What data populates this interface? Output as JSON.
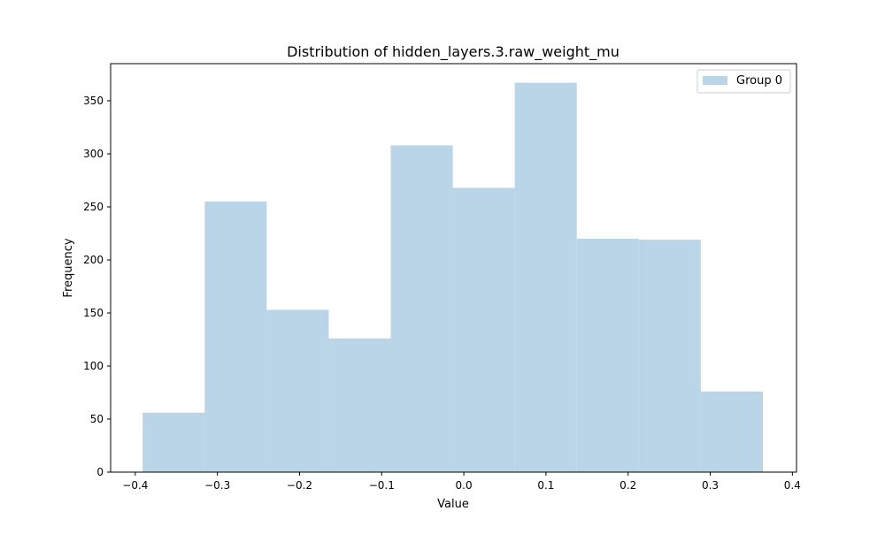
{
  "chart_data": {
    "type": "bar",
    "title": "Distribution of hidden_layers.3.raw_weight_mu",
    "xlabel": "Value",
    "ylabel": "Frequency",
    "xlim": [
      -0.43,
      0.405
    ],
    "ylim": [
      0,
      385
    ],
    "xticks": [
      -0.4,
      -0.3,
      -0.2,
      -0.1,
      0.0,
      0.1,
      0.2,
      0.3,
      0.4
    ],
    "xtick_labels": [
      "−0.4",
      "−0.3",
      "−0.2",
      "−0.1",
      "0.0",
      "0.1",
      "0.2",
      "0.3",
      "0.4"
    ],
    "yticks": [
      0,
      50,
      100,
      150,
      200,
      250,
      300,
      350
    ],
    "ytick_labels": [
      "0",
      "50",
      "100",
      "150",
      "200",
      "250",
      "300",
      "350"
    ],
    "bin_edges": [
      -0.391,
      -0.3155,
      -0.24,
      -0.1645,
      -0.089,
      -0.0135,
      0.062,
      0.1375,
      0.213,
      0.2885,
      0.364
    ],
    "series": [
      {
        "name": "Group 0",
        "color": "#bad4e8",
        "values": [
          56,
          255,
          153,
          126,
          308,
          268,
          367,
          220,
          219,
          76
        ]
      }
    ],
    "grid": false,
    "legend_position": "top-right"
  }
}
